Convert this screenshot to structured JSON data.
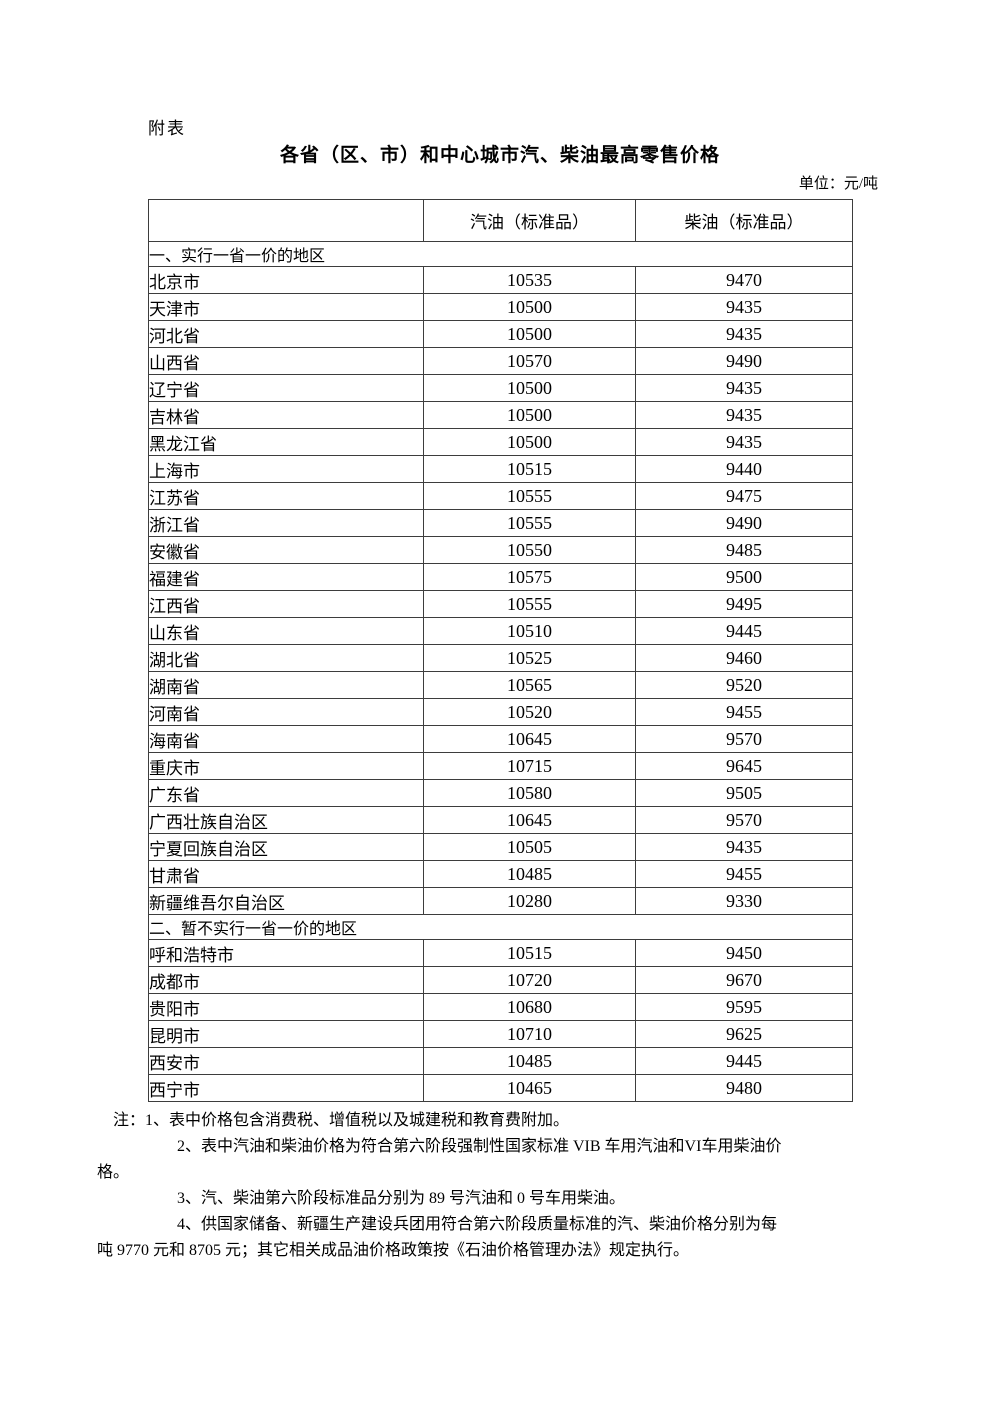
{
  "page": {
    "label": "附表",
    "title": "各省（区、市）和中心城市汽、柴油最高零售价格",
    "unit": "单位：元/吨"
  },
  "table": {
    "columns": {
      "region": "",
      "gasoline": "汽油（标准品）",
      "diesel": "柴油（标准品）"
    },
    "sections": [
      {
        "label": "一、实行一省一价的地区",
        "rows": [
          {
            "region": "北京市",
            "gasoline": "10535",
            "diesel": "9470"
          },
          {
            "region": "天津市",
            "gasoline": "10500",
            "diesel": "9435"
          },
          {
            "region": "河北省",
            "gasoline": "10500",
            "diesel": "9435"
          },
          {
            "region": "山西省",
            "gasoline": "10570",
            "diesel": "9490"
          },
          {
            "region": "辽宁省",
            "gasoline": "10500",
            "diesel": "9435"
          },
          {
            "region": "吉林省",
            "gasoline": "10500",
            "diesel": "9435"
          },
          {
            "region": "黑龙江省",
            "gasoline": "10500",
            "diesel": "9435"
          },
          {
            "region": "上海市",
            "gasoline": "10515",
            "diesel": "9440"
          },
          {
            "region": "江苏省",
            "gasoline": "10555",
            "diesel": "9475"
          },
          {
            "region": "浙江省",
            "gasoline": "10555",
            "diesel": "9490"
          },
          {
            "region": "安徽省",
            "gasoline": "10550",
            "diesel": "9485"
          },
          {
            "region": "福建省",
            "gasoline": "10575",
            "diesel": "9500"
          },
          {
            "region": "江西省",
            "gasoline": "10555",
            "diesel": "9495"
          },
          {
            "region": "山东省",
            "gasoline": "10510",
            "diesel": "9445"
          },
          {
            "region": "湖北省",
            "gasoline": "10525",
            "diesel": "9460"
          },
          {
            "region": "湖南省",
            "gasoline": "10565",
            "diesel": "9520"
          },
          {
            "region": "河南省",
            "gasoline": "10520",
            "diesel": "9455"
          },
          {
            "region": "海南省",
            "gasoline": "10645",
            "diesel": "9570"
          },
          {
            "region": "重庆市",
            "gasoline": "10715",
            "diesel": "9645"
          },
          {
            "region": "广东省",
            "gasoline": "10580",
            "diesel": "9505"
          },
          {
            "region": "广西壮族自治区",
            "gasoline": "10645",
            "diesel": "9570"
          },
          {
            "region": "宁夏回族自治区",
            "gasoline": "10505",
            "diesel": "9435"
          },
          {
            "region": "甘肃省",
            "gasoline": "10485",
            "diesel": "9455"
          },
          {
            "region": "新疆维吾尔自治区",
            "gasoline": "10280",
            "diesel": "9330"
          }
        ]
      },
      {
        "label": "二、暂不实行一省一价的地区",
        "rows": [
          {
            "region": "呼和浩特市",
            "gasoline": "10515",
            "diesel": "9450"
          },
          {
            "region": "成都市",
            "gasoline": "10720",
            "diesel": "9670"
          },
          {
            "region": "贵阳市",
            "gasoline": "10680",
            "diesel": "9595"
          },
          {
            "region": "昆明市",
            "gasoline": "10710",
            "diesel": "9625"
          },
          {
            "region": "西安市",
            "gasoline": "10485",
            "diesel": "9445"
          },
          {
            "region": "西宁市",
            "gasoline": "10465",
            "diesel": "9480"
          }
        ]
      }
    ]
  },
  "notes": {
    "lines": [
      {
        "type": "lead",
        "text": "注：1、表中价格包含消费税、增值税以及城建税和教育费附加。"
      },
      {
        "type": "item",
        "text": "2、表中汽油和柴油价格为符合第六阶段强制性国家标准 VIB 车用汽油和VI车用柴油价"
      },
      {
        "type": "cont",
        "text": "格。"
      },
      {
        "type": "item",
        "text": "3、汽、柴油第六阶段标准品分别为 89 号汽油和 0 号车用柴油。"
      },
      {
        "type": "item",
        "text": "4、供国家储备、新疆生产建设兵团用符合第六阶段质量标准的汽、柴油价格分别为每"
      },
      {
        "type": "cont",
        "text": "吨 9770 元和 8705 元；其它相关成品油价格政策按《石油价格管理办法》规定执行。"
      }
    ]
  }
}
